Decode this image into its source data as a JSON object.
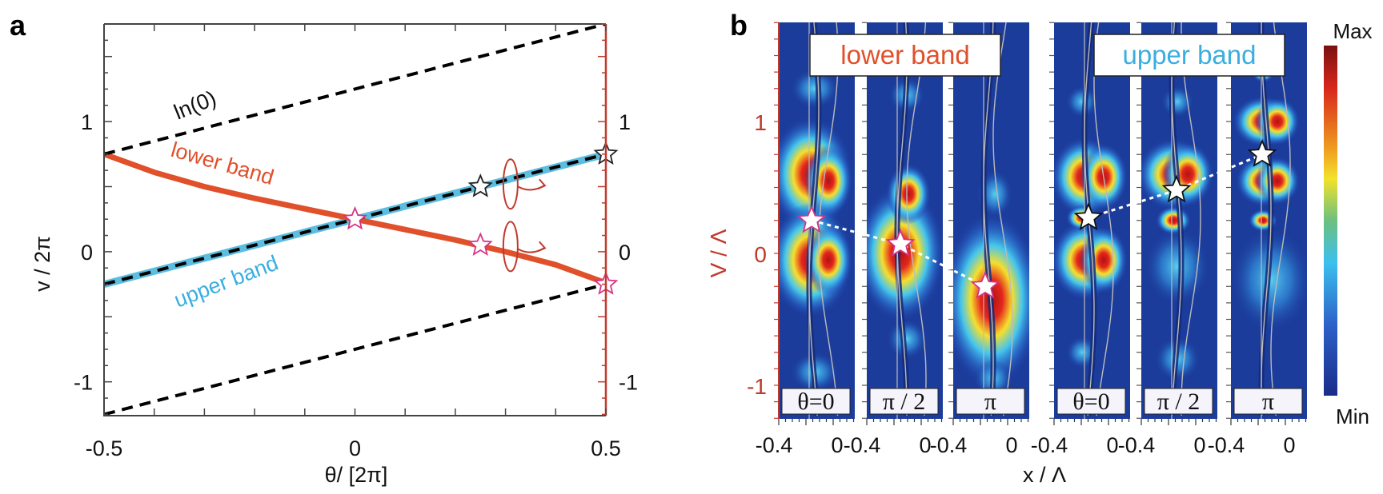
{
  "chart_data": [
    {
      "panel_label": "a",
      "type": "line",
      "xlabel": "θ/ [2π]",
      "ylabel": "v / 2π",
      "xlim": [
        -0.5,
        0.5
      ],
      "ylim": [
        -1.26,
        1.75
      ],
      "xticks": [
        "-0.5",
        "0",
        "0.5"
      ],
      "xtick_values": [
        -0.5,
        0,
        0.5
      ],
      "yticks": [
        "1",
        "0",
        "-1"
      ],
      "ytick_values": [
        1,
        0,
        -1
      ],
      "right_axis": {
        "ticks": [
          "1",
          "0",
          "-1"
        ],
        "values": [
          1,
          0,
          -1
        ],
        "color": "#c0392b"
      },
      "grid": false,
      "series": [
        {
          "name": "lower band",
          "style": "solid",
          "color": "#e0502a",
          "x": [
            -0.5,
            -0.4,
            -0.3,
            -0.2,
            -0.1,
            0,
            0.1,
            0.2,
            0.3,
            0.4,
            0.5
          ],
          "y": [
            0.75,
            0.61,
            0.5,
            0.41,
            0.33,
            0.25,
            0.17,
            0.09,
            0.0,
            -0.1,
            -0.24
          ]
        },
        {
          "name": "upper band",
          "style": "solid",
          "color": "#5bbde0",
          "x": [
            -0.5,
            0.5
          ],
          "y": [
            -0.25,
            0.75
          ]
        },
        {
          "name": "ln(0)",
          "style": "dashed",
          "color": "#000000",
          "x": [
            -0.5,
            0.5
          ],
          "y": [
            0.75,
            1.75
          ]
        },
        {
          "style": "dashed",
          "color": "#000000",
          "x": [
            -0.5,
            0.5
          ],
          "y": [
            -0.25,
            0.75
          ]
        },
        {
          "style": "dashed",
          "color": "#000000",
          "x": [
            -0.5,
            0.5
          ],
          "y": [
            -1.25,
            -0.25
          ]
        }
      ],
      "markers": [
        {
          "x": 0,
          "y": 0.25,
          "band": "lower",
          "stroke": "#d63384"
        },
        {
          "x": 0.25,
          "y": 0.05,
          "band": "lower",
          "stroke": "#d63384"
        },
        {
          "x": 0.5,
          "y": -0.25,
          "band": "lower",
          "stroke": "#d63384"
        },
        {
          "x": 0.25,
          "y": 0.5,
          "band": "upper",
          "stroke": "#222222"
        },
        {
          "x": 0.5,
          "y": 0.75,
          "band": "upper",
          "stroke": "#222222"
        }
      ],
      "annotations": [
        "ln(0)",
        "lower band",
        "upper band"
      ]
    },
    {
      "panel_label": "b",
      "type": "heatmap",
      "xlabel": "x / Λ",
      "ylabel": "V / Λ",
      "yticks": [
        "1",
        "0",
        "-1"
      ],
      "ytick_values": [
        1,
        0,
        -1
      ],
      "ylabel_color": "#c0392b",
      "groups": [
        {
          "label": "lower band",
          "color": "#e0502a",
          "panels": [
            {
              "label": "θ=0",
              "xticks": [
                "-0.4",
                "0"
              ],
              "star_v": 0.25
            },
            {
              "label": "π / 2",
              "xticks": [
                "-0.4",
                "0"
              ],
              "star_v": 0.07
            },
            {
              "label": "π",
              "xticks": [
                "-0.4",
                "0"
              ],
              "star_v": -0.25
            }
          ]
        },
        {
          "label": "upper band",
          "color": "#3aaee0",
          "panels": [
            {
              "label": "θ=0",
              "xticks": [
                "-0.4",
                "0"
              ],
              "star_v": 0.27
            },
            {
              "label": "π / 2",
              "xticks": [
                "-0.4",
                "0"
              ],
              "star_v": 0.48
            },
            {
              "label": "π",
              "xticks": [
                "-0.4",
                "0"
              ],
              "star_v": 0.75
            }
          ]
        }
      ],
      "colorbar": {
        "max_label": "Max",
        "min_label": "Min",
        "colormap": "jet"
      }
    }
  ]
}
